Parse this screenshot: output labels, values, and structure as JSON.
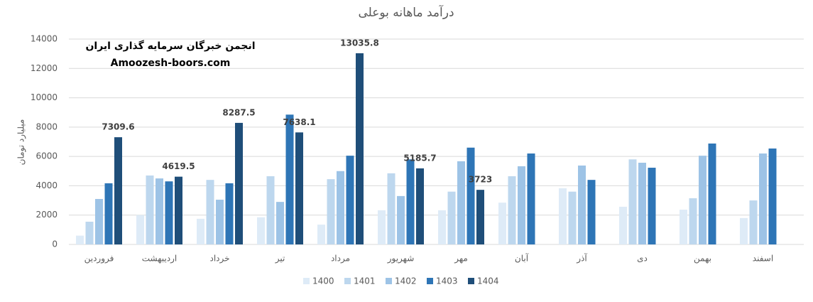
{
  "chart_data": {
    "type": "bar",
    "title": "درآمد ماهانه بوعلی",
    "y_label": "میلیارد تومان",
    "annotations": [
      "انجمن خبرگان سرمایه گذاری ایران",
      "Amoozesh-boors.com"
    ],
    "categories": [
      "فروردین",
      "اردیبهشت",
      "خرداد",
      "تیر",
      "مرداد",
      "شهریور",
      "مهر",
      "آبان",
      "آذر",
      "دی",
      "بهمن",
      "اسفند"
    ],
    "series": [
      {
        "name": "1400",
        "color": "#deebf7",
        "values": [
          600,
          2000,
          1750,
          1850,
          1350,
          2330,
          2330,
          2850,
          3830,
          2570,
          2370,
          1800
        ]
      },
      {
        "name": "1401",
        "color": "#bdd7ee",
        "values": [
          1550,
          4700,
          4400,
          4650,
          4450,
          4850,
          3600,
          4650,
          3600,
          5800,
          3150,
          3000
        ]
      },
      {
        "name": "1402",
        "color": "#9dc3e6",
        "values": [
          3100,
          4500,
          3050,
          2900,
          5000,
          3300,
          5670,
          5330,
          5380,
          5570,
          6050,
          6200
        ]
      },
      {
        "name": "1403",
        "color": "#2e75b6",
        "values": [
          4170,
          4300,
          4170,
          8850,
          6050,
          5800,
          6600,
          6200,
          4400,
          5230,
          6880,
          6540
        ]
      },
      {
        "name": "1404",
        "color": "#1f4e79",
        "show_labels": true,
        "values": [
          7309.6,
          4619.5,
          8287.5,
          7638.1,
          13035.8,
          5185.7,
          3723,
          null,
          null,
          null,
          null,
          null
        ]
      }
    ],
    "ylim": [
      0,
      14000
    ],
    "yticks": [
      0,
      2000,
      4000,
      6000,
      8000,
      10000,
      12000,
      14000
    ],
    "grid": true
  }
}
